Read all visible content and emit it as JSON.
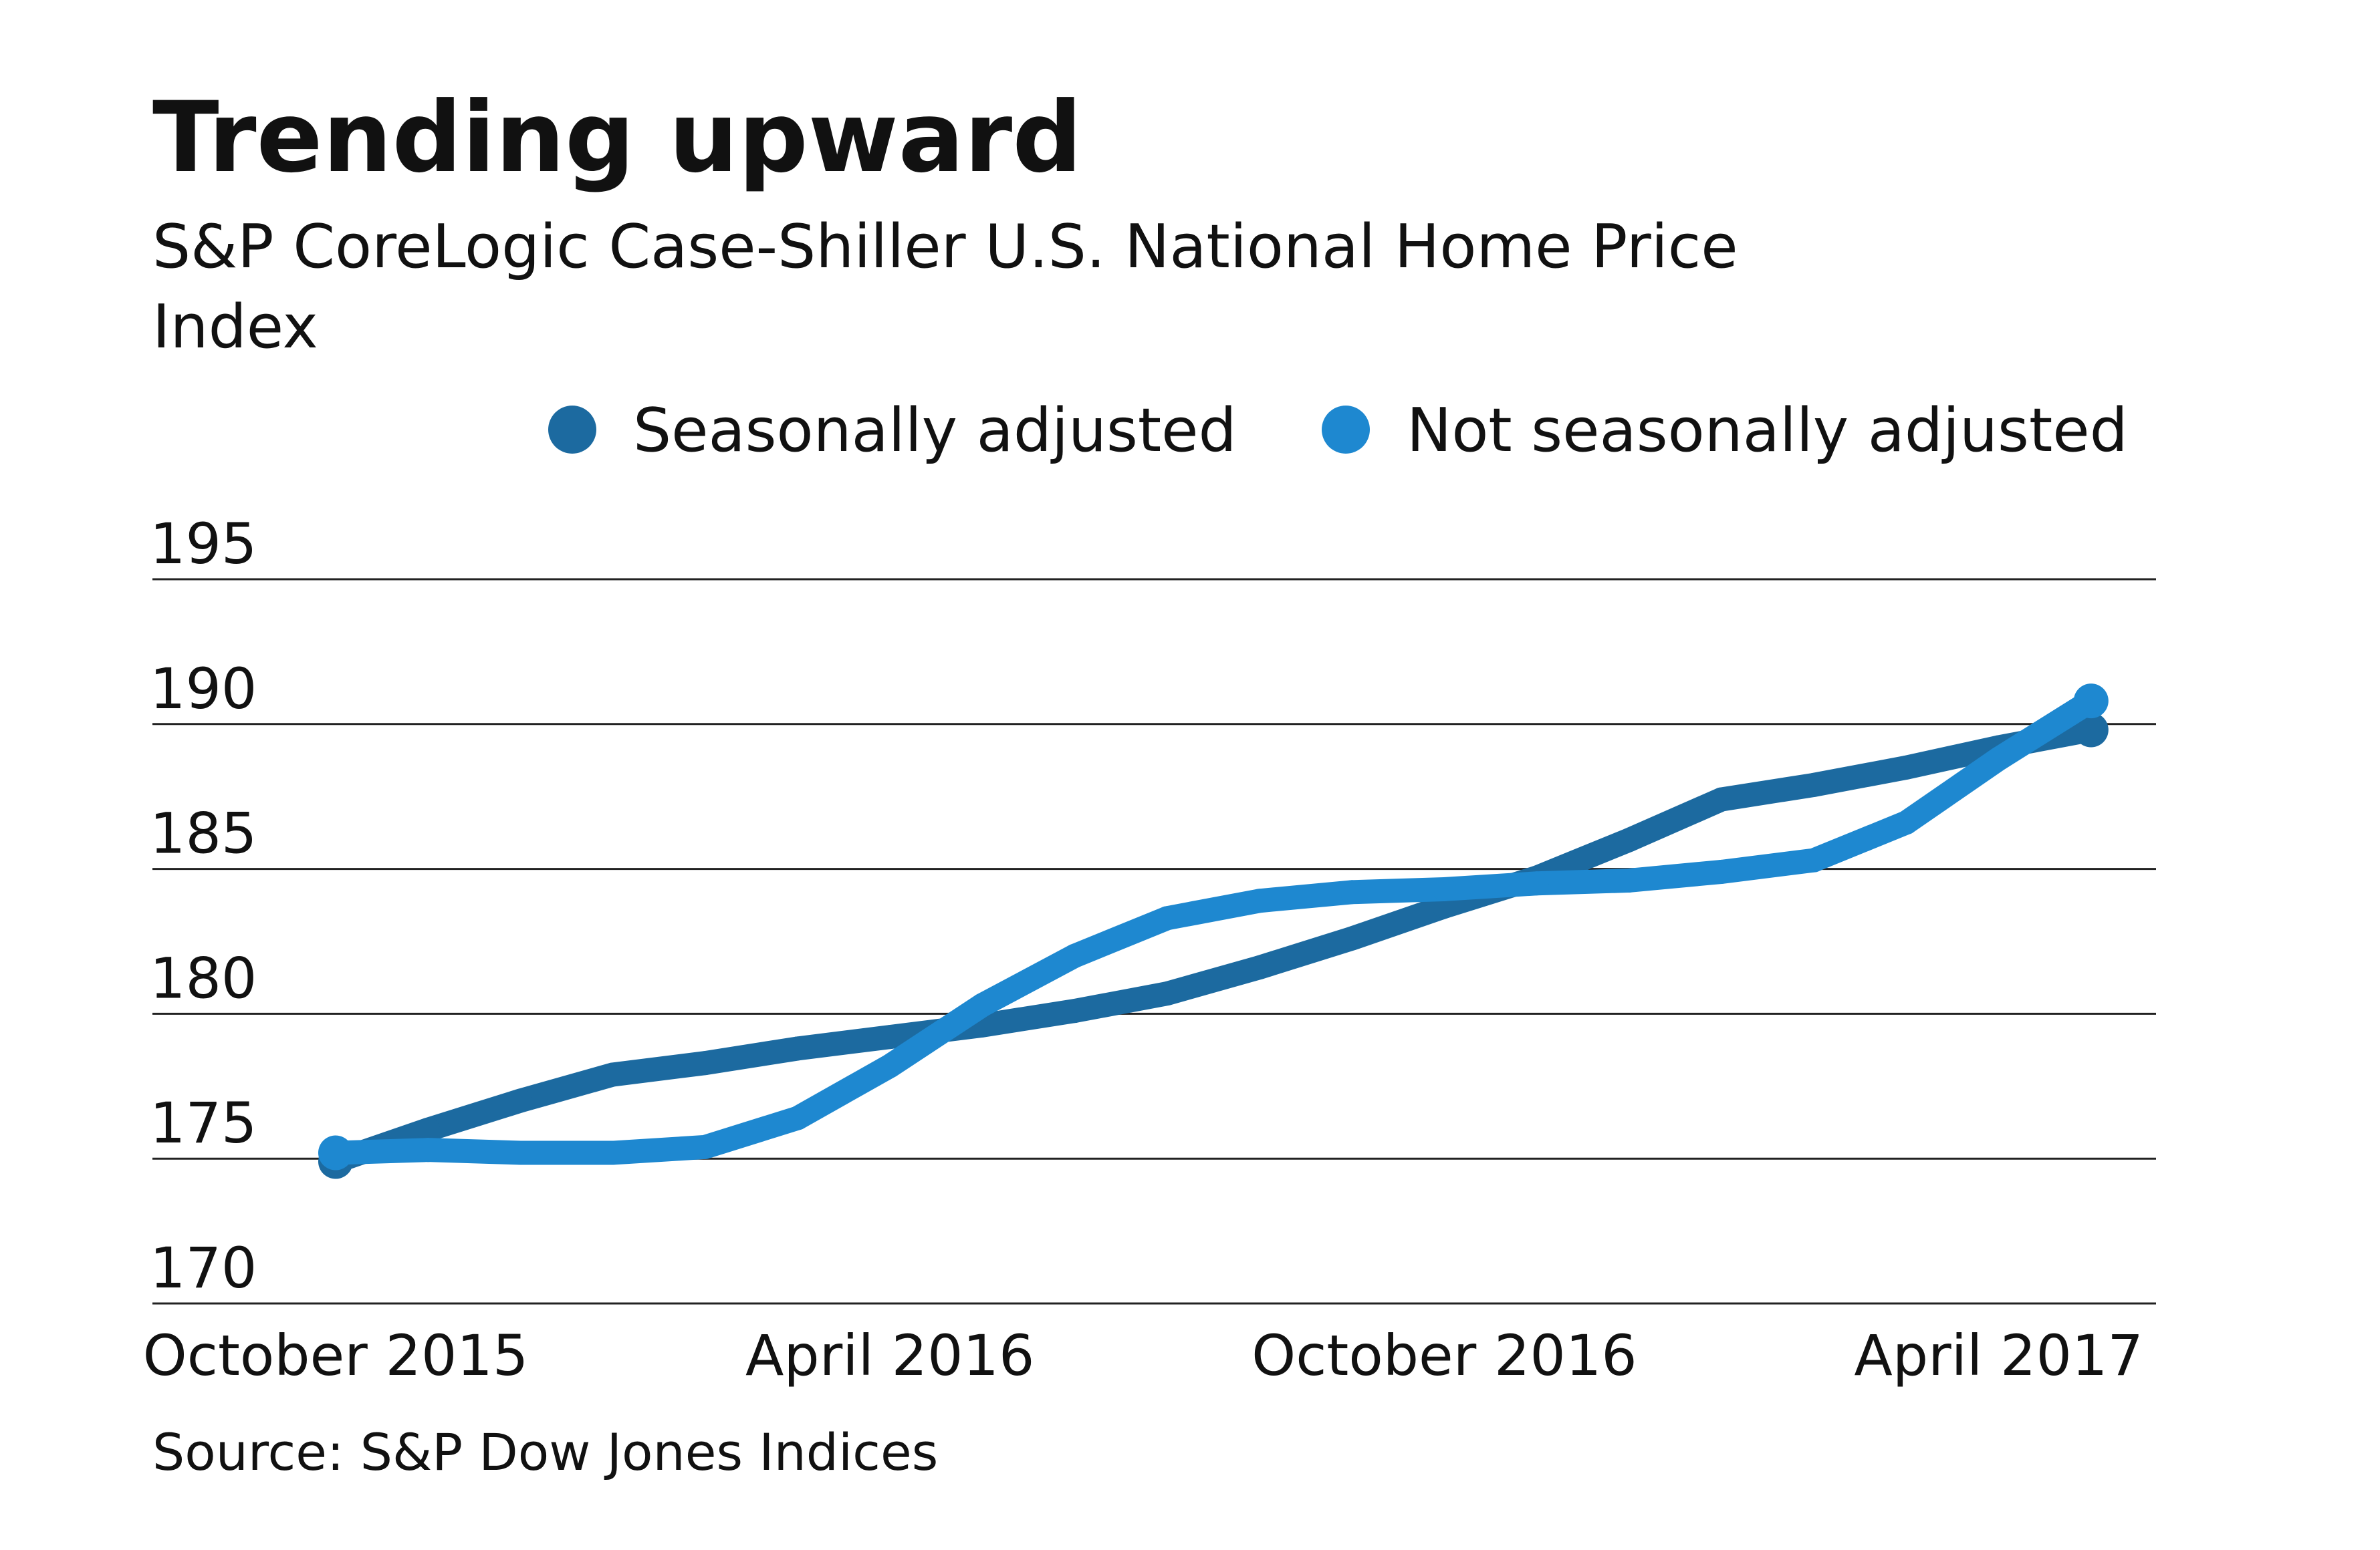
{
  "chart_data": {
    "type": "line",
    "title": "Trending upward",
    "subtitle_lines": [
      "S&P CoreLogic Case-Shiller U.S. National Home Price",
      "Index"
    ],
    "source": "Source: S&P Dow Jones Indices",
    "xlabel": "",
    "ylabel": "",
    "x": [
      "2015-10",
      "2015-11",
      "2015-12",
      "2016-01",
      "2016-02",
      "2016-03",
      "2016-04",
      "2016-05",
      "2016-06",
      "2016-07",
      "2016-08",
      "2016-09",
      "2016-10",
      "2016-11",
      "2016-12",
      "2017-01",
      "2017-02",
      "2017-03",
      "2017-04",
      "2017-05"
    ],
    "x_tick_labels": [
      {
        "x": "2015-10",
        "label": "October 2015"
      },
      {
        "x": "2016-04",
        "label": "April 2016"
      },
      {
        "x": "2016-10",
        "label": "October 2016"
      },
      {
        "x": "2017-04",
        "label": "April 2017"
      }
    ],
    "y_ticks": [
      170,
      175,
      180,
      185,
      190,
      195
    ],
    "ylim": [
      170,
      195
    ],
    "grid": "horizontal",
    "legend_position": "top-right",
    "series": [
      {
        "name": "Seasonally adjusted",
        "color": "#1c6aa0",
        "values": [
          174.9,
          176.0,
          177.0,
          177.9,
          178.3,
          178.8,
          179.2,
          179.6,
          180.1,
          180.7,
          181.6,
          182.6,
          183.7,
          184.7,
          186.0,
          187.4,
          187.9,
          188.5,
          189.2,
          189.8
        ]
      },
      {
        "name": "Not seasonally adjusted",
        "color": "#1e88d0",
        "values": [
          175.2,
          175.3,
          175.2,
          175.2,
          175.4,
          176.4,
          178.2,
          180.3,
          182.0,
          183.3,
          183.9,
          184.2,
          184.3,
          184.5,
          184.6,
          184.9,
          185.3,
          186.6,
          188.8,
          190.8
        ]
      }
    ]
  }
}
